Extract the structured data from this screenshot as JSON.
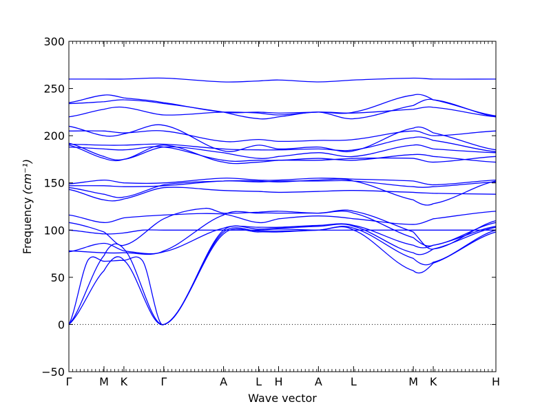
{
  "chart_data": {
    "type": "line",
    "xlabel": "Wave vector",
    "ylabel": "Frequency",
    "ylabel_unit": "(cm⁻¹)",
    "ylim": [
      -50,
      300
    ],
    "yticks": [
      -50,
      0,
      50,
      100,
      150,
      200,
      250,
      300
    ],
    "xlim": [
      0,
      4.5
    ],
    "xticks": [
      {
        "label": "Γ",
        "x": 0.0
      },
      {
        "label": "M",
        "x": 0.37
      },
      {
        "label": "K",
        "x": 0.58
      },
      {
        "label": "Γ",
        "x": 1.0
      },
      {
        "label": "A",
        "x": 1.63
      },
      {
        "label": "L",
        "x": 2.0
      },
      {
        "label": "H",
        "x": 2.21
      },
      {
        "label": "A",
        "x": 2.63
      },
      {
        "label": "L",
        "x": 3.0
      },
      {
        "label": "M",
        "x": 3.63
      },
      {
        "label": "K",
        "x": 3.84
      },
      {
        "label": "H",
        "x": 4.5
      }
    ],
    "reference_line": {
      "y": 0,
      "style": "dotted"
    },
    "color": "#0000ff",
    "series": [
      {
        "x": [
          0,
          0.37,
          0.58,
          1.0,
          1.63,
          2.0,
          2.21,
          2.63,
          3.0,
          3.63,
          3.84,
          4.5
        ],
        "y": [
          0,
          57,
          68,
          0,
          96,
          98,
          98,
          100,
          100,
          57,
          65,
          98
        ]
      },
      {
        "x": [
          0,
          0.2,
          0.37,
          0.58,
          0.78,
          1.0,
          1.63,
          2.0,
          2.21,
          2.63,
          3.0,
          3.63,
          3.84,
          4.5
        ],
        "y": [
          0,
          68,
          67,
          68,
          67,
          0,
          98,
          99,
          99,
          100,
          102,
          70,
          66,
          100
        ]
      },
      {
        "x": [
          0,
          0.37,
          0.58,
          1.0,
          1.63,
          2.0,
          2.21,
          2.63,
          3.0,
          3.63,
          3.84,
          4.5
        ],
        "y": [
          0,
          73,
          80,
          0,
          100,
          101,
          102,
          104,
          104,
          76,
          80,
          103
        ]
      },
      {
        "x": [
          0,
          0.37,
          0.58,
          1.0,
          1.63,
          2.0,
          2.21,
          2.63,
          3.0,
          3.63,
          3.84,
          4.5
        ],
        "y": [
          77,
          86,
          78,
          77,
          102,
          103,
          103,
          105,
          105,
          84,
          84,
          104
        ]
      },
      {
        "x": [
          0,
          0.37,
          0.58,
          1.0,
          1.63,
          2.0,
          2.21,
          2.63,
          3.0,
          3.63,
          3.84,
          4.5
        ],
        "y": [
          78,
          76,
          76,
          78,
          116,
          118,
          118,
          118,
          118,
          92,
          84,
          108
        ]
      },
      {
        "x": [
          0,
          0.37,
          0.58,
          0.78,
          1.0,
          1.63,
          2.0,
          2.21,
          2.63,
          3.0,
          3.63,
          3.84,
          4.5
        ],
        "y": [
          100,
          96,
          97,
          100,
          100,
          100,
          100,
          101,
          100,
          100,
          100,
          100,
          100
        ]
      },
      {
        "x": [
          0,
          0.37,
          0.58,
          1.0,
          1.43,
          1.63,
          2.0,
          2.21,
          2.63,
          3.0,
          3.63,
          3.84,
          4.5
        ],
        "y": [
          108,
          98,
          84,
          112,
          123,
          118,
          119,
          120,
          118,
          120,
          98,
          80,
          110
        ]
      },
      {
        "x": [
          0,
          0.37,
          0.58,
          1.0,
          1.63,
          2.0,
          2.21,
          2.63,
          3.0,
          3.63,
          3.84,
          4.5
        ],
        "y": [
          116,
          108,
          113,
          116,
          117,
          108,
          112,
          115,
          112,
          106,
          112,
          120
        ]
      },
      {
        "x": [
          0,
          0.37,
          0.58,
          1.0,
          1.63,
          2.0,
          2.21,
          2.63,
          3.0,
          3.63,
          3.84,
          4.5
        ],
        "y": [
          145,
          138,
          135,
          148,
          152,
          152,
          151,
          153,
          152,
          132,
          128,
          152
        ]
      },
      {
        "x": [
          0,
          0.37,
          0.58,
          1.0,
          1.63,
          2.0,
          2.21,
          2.63,
          3.0,
          3.63,
          3.84,
          4.5
        ],
        "y": [
          147,
          147,
          146,
          147,
          152,
          151,
          152,
          152,
          152,
          146,
          146,
          151
        ]
      },
      {
        "x": [
          0,
          0.37,
          0.58,
          1.0,
          1.63,
          2.0,
          2.21,
          2.63,
          3.0,
          3.63,
          3.84,
          4.5
        ],
        "y": [
          149,
          153,
          150,
          150,
          155,
          153,
          153,
          155,
          154,
          152,
          148,
          153
        ]
      },
      {
        "x": [
          0,
          0.37,
          0.58,
          1.0,
          1.63,
          2.0,
          2.21,
          2.63,
          3.0,
          3.63,
          3.84,
          4.5
        ],
        "y": [
          143,
          132,
          133,
          145,
          142,
          141,
          140,
          141,
          142,
          140,
          139,
          138
        ]
      },
      {
        "x": [
          0,
          0.37,
          0.58,
          1.0,
          1.63,
          2.0,
          2.21,
          2.63,
          3.0,
          3.63,
          3.84,
          4.5
        ],
        "y": [
          190,
          176,
          175,
          190,
          172,
          172,
          174,
          174,
          176,
          176,
          172,
          178
        ]
      },
      {
        "x": [
          0,
          0.37,
          0.58,
          1.0,
          1.63,
          2.0,
          2.21,
          2.63,
          3.0,
          3.63,
          3.84,
          4.5
        ],
        "y": [
          192,
          178,
          175,
          188,
          182,
          176,
          178,
          182,
          178,
          190,
          186,
          182
        ]
      },
      {
        "x": [
          0,
          0.37,
          0.58,
          1.0,
          1.63,
          2.0,
          2.21,
          2.63,
          3.0,
          3.63,
          3.84,
          4.5
        ],
        "y": [
          191,
          190,
          190,
          191,
          186,
          185,
          185,
          186,
          185,
          198,
          195,
          183
        ]
      },
      {
        "x": [
          0,
          0.37,
          0.58,
          1.0,
          1.63,
          2.0,
          2.21,
          2.63,
          3.0,
          3.63,
          3.84,
          4.5
        ],
        "y": [
          205,
          205,
          203,
          205,
          194,
          196,
          194,
          195,
          196,
          205,
          200,
          205
        ]
      },
      {
        "x": [
          0,
          0.37,
          0.58,
          1.0,
          1.63,
          2.0,
          2.21,
          2.63,
          3.0,
          3.63,
          3.84,
          4.5
        ],
        "y": [
          210,
          200,
          202,
          211,
          184,
          190,
          186,
          188,
          184,
          208,
          203,
          185
        ]
      },
      {
        "x": [
          0,
          0.37,
          0.58,
          1.0,
          1.63,
          2.0,
          2.21,
          2.63,
          3.0,
          3.63,
          3.84,
          4.5
        ],
        "y": [
          220,
          228,
          230,
          222,
          225,
          224,
          222,
          225,
          224,
          228,
          230,
          220
        ]
      },
      {
        "x": [
          0,
          0.37,
          0.58,
          1.0,
          1.63,
          2.0,
          2.21,
          2.63,
          3.0,
          3.63,
          3.84,
          4.5
        ],
        "y": [
          234,
          236,
          238,
          234,
          225,
          218,
          220,
          225,
          218,
          232,
          238,
          220
        ]
      },
      {
        "x": [
          0,
          0.37,
          0.58,
          1.0,
          1.63,
          2.0,
          2.21,
          2.63,
          3.0,
          3.63,
          3.84,
          4.5
        ],
        "y": [
          235,
          243,
          240,
          235,
          225,
          225,
          224,
          225,
          225,
          243,
          238,
          221
        ]
      },
      {
        "x": [
          0,
          0.37,
          0.58,
          1.0,
          1.63,
          2.0,
          2.21,
          2.63,
          3.0,
          3.63,
          3.84,
          4.5
        ],
        "y": [
          260,
          260,
          260,
          261,
          257,
          258,
          259,
          257,
          259,
          261,
          260,
          260
        ]
      },
      {
        "x": [
          0,
          0.37,
          0.58,
          1.0,
          1.63,
          2.0,
          2.21,
          2.63,
          3.0,
          3.63,
          3.84,
          4.5
        ],
        "y": [
          188,
          186,
          185,
          188,
          174,
          174,
          174,
          176,
          174,
          180,
          178,
          172
        ]
      }
    ]
  }
}
